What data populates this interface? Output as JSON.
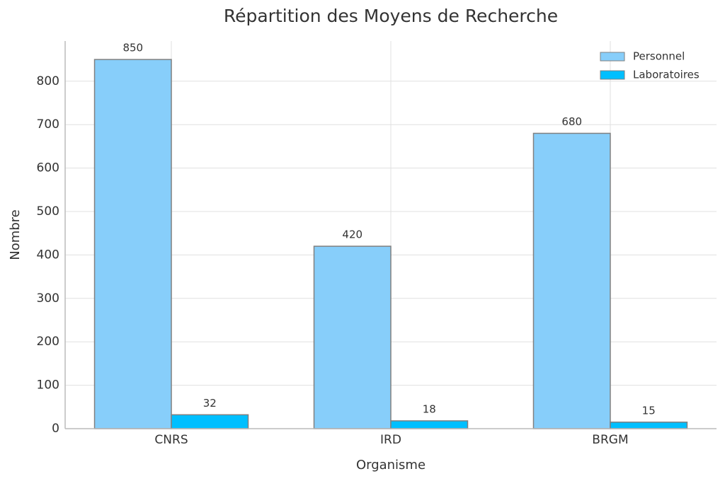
{
  "chart_data": {
    "type": "bar",
    "title": "Répartition des Moyens de Recherche",
    "x_label": "Organisme",
    "y_label": "Nombre",
    "categories": [
      "CNRS",
      "IRD",
      "BRGM"
    ],
    "series": [
      {
        "name": "Personnel",
        "color": "#87cefa",
        "values": [
          850,
          420,
          680
        ]
      },
      {
        "name": "Laboratoires",
        "color": "#00bfff",
        "values": [
          32,
          18,
          15
        ]
      }
    ],
    "ylim": [
      0,
      892.5
    ],
    "yticks": [
      0,
      100,
      200,
      300,
      400,
      500,
      600,
      700,
      800
    ],
    "grid": true,
    "legend": "upper right"
  }
}
